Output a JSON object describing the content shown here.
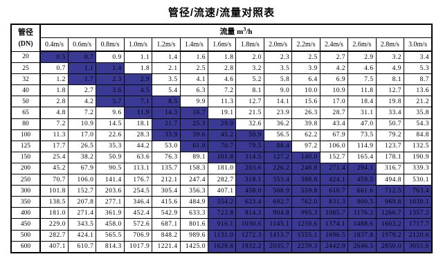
{
  "title": "管径/流速/流量对照表",
  "colors": {
    "highlight": "#3a3a94",
    "border": "#000000",
    "background": "#ffffff"
  },
  "table": {
    "corner_header_line1": "管径",
    "corner_header_line2": "(DN)",
    "flow_header_prefix": "流量 m",
    "flow_header_sup": "3",
    "flow_header_suffix": "/h",
    "velocity_headers": [
      "0.4m/s",
      "0.6m/s",
      "0.8m/s",
      "1.0m/s",
      "1.2m/s",
      "1.4m/s",
      "1.6m/s",
      "1.8m/s",
      "2.0m/s",
      "2.2m/s",
      "2.4m/s",
      "2.6m/s",
      "2.8m/s",
      "3.0m/s"
    ],
    "rows": [
      {
        "dn": "20",
        "values": [
          "0.5",
          "0.7",
          "0.9",
          "1.1",
          "1.4",
          "1.6",
          "1.8",
          "2.0",
          "2.3",
          "2.5",
          "2.7",
          "2.9",
          "3.2",
          "3.4"
        ],
        "highlight_range": [
          0,
          1
        ]
      },
      {
        "dn": "25",
        "values": [
          "0.7",
          "1.1",
          "1.4",
          "1.8",
          "2.1",
          "2.5",
          "2.8",
          "3.2",
          "3.5",
          "3.9",
          "4.2",
          "4.6",
          "4.9",
          "5.3"
        ],
        "highlight_range": [
          1,
          2
        ]
      },
      {
        "dn": "32",
        "values": [
          "1.2",
          "1.7",
          "2.3",
          "2.9",
          "3.5",
          "4.1",
          "4.6",
          "5.2",
          "5.8",
          "6.4",
          "6.9",
          "7.5",
          "8.1",
          "8.7"
        ],
        "highlight_range": [
          1,
          3
        ]
      },
      {
        "dn": "40",
        "values": [
          "1.8",
          "2.7",
          "3.6",
          "4.5",
          "5.4",
          "6.3",
          "7.2",
          "8.1",
          "9.0",
          "10.0",
          "10.9",
          "11.8",
          "12.7",
          "13.6"
        ],
        "highlight_range": [
          2,
          3
        ]
      },
      {
        "dn": "50",
        "values": [
          "2.8",
          "4.2",
          "5.7",
          "7.1",
          "8.5",
          "9.9",
          "11.3",
          "12.7",
          "14.1",
          "15.6",
          "17.0",
          "18.4",
          "19.8",
          "21.2"
        ],
        "highlight_range": [
          2,
          4
        ]
      },
      {
        "dn": "65",
        "values": [
          "4.8",
          "7.2",
          "9.6",
          "11.9",
          "14.3",
          "16.7",
          "19.1",
          "21.5",
          "23.9",
          "26.3",
          "28.7",
          "31.1",
          "33.4",
          "35.8"
        ],
        "highlight_range": [
          3,
          5
        ]
      },
      {
        "dn": "80",
        "values": [
          "7.2",
          "10.9",
          "14.5",
          "18.1",
          "21.7",
          "25.3",
          "29.0",
          "32.6",
          "36.2",
          "39.8",
          "43.4",
          "47.0",
          "50.7",
          "54.3"
        ],
        "highlight_range": [
          4,
          6
        ]
      },
      {
        "dn": "100",
        "values": [
          "11.3",
          "17.0",
          "22.6",
          "28.3",
          "33.9",
          "39.6",
          "45.2",
          "50.9",
          "56.5",
          "62.2",
          "67.9",
          "73.5",
          "79.2",
          "84.8"
        ],
        "highlight_range": [
          4,
          7
        ]
      },
      {
        "dn": "125",
        "values": [
          "17.7",
          "26.5",
          "35.3",
          "44.2",
          "53.0",
          "61.9",
          "70.7",
          "79.5",
          "88.4",
          "97.2",
          "106.0",
          "114.9",
          "123.7",
          "132.5"
        ],
        "highlight_range": [
          5,
          8
        ]
      },
      {
        "dn": "150",
        "values": [
          "25.4",
          "38.2",
          "50.9",
          "63.6",
          "76.3",
          "89.1",
          "101.8",
          "114.5",
          "127.2",
          "140.0",
          "152.7",
          "165.4",
          "178.1",
          "190.9"
        ],
        "highlight_range": [
          6,
          9
        ]
      },
      {
        "dn": "200",
        "values": [
          "45.2",
          "67.9",
          "90.5",
          "113.1",
          "135.7",
          "158.3",
          "181.0",
          "203.6",
          "226.2",
          "248.8",
          "271.4",
          "294.1",
          "316.7",
          "339.3"
        ],
        "highlight_range": [
          7,
          11
        ]
      },
      {
        "dn": "250",
        "values": [
          "70.7",
          "106.0",
          "141.4",
          "176.7",
          "212.1",
          "247.4",
          "282.7",
          "318.1",
          "353.4",
          "388.8",
          "424.1",
          "459.5",
          "494.8",
          "530.1"
        ],
        "highlight_range": [
          7,
          11
        ]
      },
      {
        "dn": "300",
        "values": [
          "101.8",
          "152.7",
          "203.6",
          "254.5",
          "305.4",
          "356.3",
          "407.1",
          "458.0",
          "508.9",
          "559.8",
          "610.7",
          "661.6",
          "712.5",
          "763.4"
        ],
        "highlight_range": [
          7,
          13
        ]
      },
      {
        "dn": "350",
        "values": [
          "138.5",
          "207.8",
          "277.1",
          "346.4",
          "415.6",
          "484.9",
          "554.2",
          "623.4",
          "692.7",
          "762.0",
          "831.3",
          "900.5",
          "969.8",
          "1039.1"
        ],
        "highlight_range": [
          6,
          13
        ]
      },
      {
        "dn": "400",
        "values": [
          "181.0",
          "271.4",
          "361.9",
          "452.4",
          "542.9",
          "633.3",
          "723.8",
          "814.3",
          "904.8",
          "995.3",
          "1085.7",
          "1176.2",
          "1266.7",
          "1357.2"
        ],
        "highlight_range": [
          6,
          13
        ]
      },
      {
        "dn": "450",
        "values": [
          "229.0",
          "343.5",
          "458.0",
          "572.6",
          "687.1",
          "801.6",
          "916.1",
          "1030.6",
          "1145.1",
          "1259.6",
          "1374.1",
          "1488.6",
          "1603.2",
          "1717.7"
        ],
        "highlight_range": [
          6,
          13
        ]
      },
      {
        "dn": "500",
        "values": [
          "282.7",
          "424.1",
          "565.5",
          "706.9",
          "848.2",
          "989.6",
          "1131.0",
          "1272.3",
          "1413.7",
          "1555.1",
          "1696.5",
          "1837.8",
          "1979.2",
          "2120.6"
        ],
        "highlight_range": [
          6,
          13
        ]
      },
      {
        "dn": "600",
        "values": [
          "407.1",
          "610.7",
          "814.3",
          "1017.9",
          "1221.4",
          "1425.0",
          "1628.6",
          "1832.2",
          "2035.7",
          "2239.3",
          "2442.9",
          "2646.5",
          "2850.0",
          "3053.6"
        ],
        "highlight_range": [
          6,
          13
        ]
      }
    ]
  }
}
